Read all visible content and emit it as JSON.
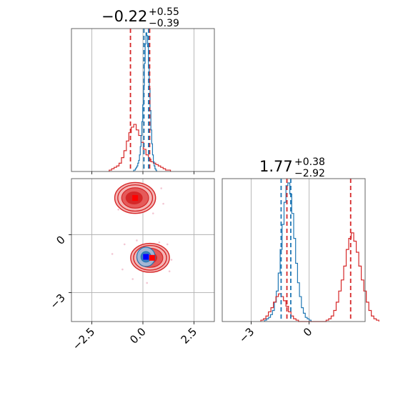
{
  "colors": {
    "red": "#d62728",
    "blue": "#1f77b4",
    "grid": "#b0b0b0",
    "axes": "#555555",
    "fill_light_red": "#f4b6b6",
    "marker_red": "#ff0000",
    "marker_blue": "#0000ff"
  },
  "chart_data": {
    "type": "corner",
    "grid": true,
    "panels": [
      {
        "id": "top-left",
        "type": "histogram",
        "title": {
          "value": "−0.22",
          "plus": "+0.55",
          "minus": "−0.39"
        },
        "xlim": [
          -3.5,
          3.5
        ],
        "xticks": [
          -2.5,
          0.0,
          2.5
        ],
        "series": [
          {
            "color": "red",
            "bins": {
              "start": -1.65,
              "width": 0.12,
              "counts": [
                1,
                2,
                3,
                4,
                6,
                10,
                15,
                22,
                28,
                32,
                34,
                30,
                26,
                21,
                16,
                12,
                9,
                7,
                6,
                5,
                4,
                3,
                2,
                1,
                1
              ]
            }
          },
          {
            "color": "blue",
            "bins": {
              "start": -0.45,
              "width": 0.04,
              "counts": [
                1,
                1,
                2,
                3,
                4,
                6,
                8,
                12,
                18,
                26,
                36,
                48,
                62,
                78,
                92,
                100,
                98,
                90,
                76,
                60,
                44,
                30,
                20,
                12,
                7,
                4,
                2,
                1
              ]
            }
          }
        ],
        "quantile_lines": [
          {
            "color": "red",
            "x": [
              -0.61,
              0.33
            ]
          },
          {
            "color": "blue",
            "x": [
              0.05,
              0.28
            ]
          }
        ]
      },
      {
        "id": "bottom-left",
        "type": "contour",
        "xlim": [
          -3.5,
          3.5
        ],
        "ylim": [
          -4.5,
          2.9
        ],
        "xticks": [
          -2.5,
          0.0,
          2.5
        ],
        "yticks": [
          -3,
          0
        ],
        "xtick_labels": [
          "−2.5",
          "0.0",
          "2.5"
        ],
        "ytick_labels": [
          "−3",
          "0"
        ],
        "red_modes": [
          {
            "x": -0.38,
            "y": 1.9,
            "rx": 1.0,
            "ry": 0.8
          },
          {
            "x": 0.35,
            "y": -1.2,
            "rx": 0.95,
            "ry": 0.75
          }
        ],
        "blue_mode": {
          "x": 0.15,
          "y": -1.15,
          "rx": 0.45,
          "ry": 0.5
        },
        "markers": [
          {
            "color": "marker_red",
            "x": -0.38,
            "y": 1.9
          },
          {
            "color": "marker_red",
            "x": 0.45,
            "y": -1.2
          },
          {
            "color": "marker_blue",
            "x": 0.15,
            "y": -1.15
          }
        ]
      },
      {
        "id": "bottom-right",
        "type": "histogram",
        "title": {
          "value": "1.77",
          "plus": "+0.38",
          "minus": "−2.92"
        },
        "xlim": [
          -4.5,
          2.9
        ],
        "xticks": [
          -3,
          0
        ],
        "xtick_labels": [
          "−3",
          "0"
        ],
        "series": [
          {
            "color": "blue",
            "bins": {
              "start": -2.3,
              "width": 0.1,
              "counts": [
                1,
                2,
                3,
                5,
                8,
                14,
                22,
                35,
                52,
                70,
                86,
                98,
                100,
                92,
                78,
                60,
                42,
                28,
                18,
                10,
                6,
                3,
                2,
                1
              ]
            }
          },
          {
            "color": "red",
            "bins": {
              "start": -2.5,
              "width": 0.13,
              "counts": [
                1,
                2,
                4,
                7,
                10,
                14,
                18,
                20,
                18,
                15,
                11,
                7,
                4,
                2,
                1,
                0,
                0,
                0,
                0,
                0,
                0,
                0,
                0,
                0,
                0,
                0,
                1,
                2,
                4,
                8,
                14,
                22,
                30,
                40,
                52,
                60,
                64,
                58,
                50,
                40,
                30,
                22,
                14,
                8,
                4,
                2,
                1
              ]
            }
          }
        ],
        "quantile_lines": [
          {
            "color": "red",
            "x": [
              -1.15,
              2.15
            ]
          },
          {
            "color": "blue",
            "x": [
              -1.45,
              -0.95
            ]
          }
        ]
      }
    ]
  }
}
